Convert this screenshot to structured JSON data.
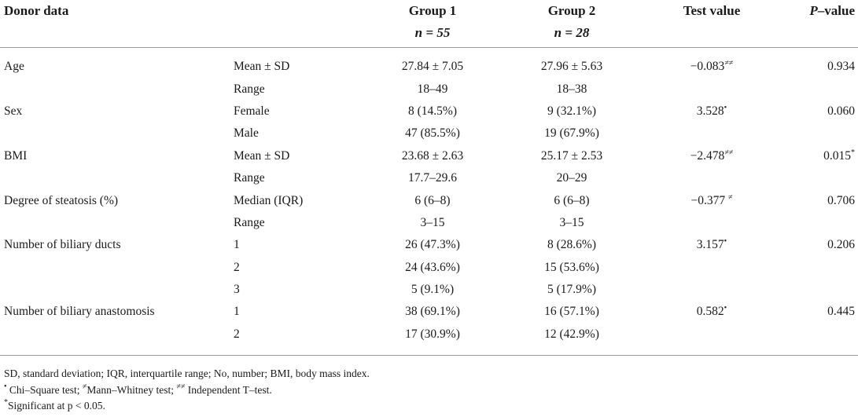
{
  "header": {
    "col1": "Donor data",
    "col3": "Group 1",
    "col3_n": "n = 55",
    "col4": "Group 2",
    "col4_n": "n = 28",
    "col5": "Test value",
    "col6_italic": "P",
    "col6_rest": "–value"
  },
  "rows": [
    {
      "variable": "Age",
      "stat": "Mean ± SD",
      "g1": "27.84 ± 7.05",
      "g2": "27.96 ± 5.63",
      "test": "−0.083",
      "test_mark": "≠≠",
      "p": "0.934",
      "p_mark": ""
    },
    {
      "variable": "",
      "stat": "Range",
      "g1": "18–49",
      "g2": "18–38",
      "test": "",
      "test_mark": "",
      "p": "",
      "p_mark": ""
    },
    {
      "variable": "Sex",
      "stat": "Female",
      "g1": "8 (14.5%)",
      "g2": "9 (32.1%)",
      "test": "3.528",
      "test_mark": "•",
      "p": "0.060",
      "p_mark": ""
    },
    {
      "variable": "",
      "stat": "Male",
      "g1": "47 (85.5%)",
      "g2": "19 (67.9%)",
      "test": "",
      "test_mark": "",
      "p": "",
      "p_mark": ""
    },
    {
      "variable": "BMI",
      "stat": "Mean ± SD",
      "g1": "23.68 ± 2.63",
      "g2": "25.17 ± 2.53",
      "test": "−2.478",
      "test_mark": "≠≠",
      "p": "0.015",
      "p_mark": "*"
    },
    {
      "variable": "",
      "stat": "Range",
      "g1": "17.7–29.6",
      "g2": "20–29",
      "test": "",
      "test_mark": "",
      "p": "",
      "p_mark": ""
    },
    {
      "variable": "Degree of steatosis (%)",
      "stat": "Median (IQR)",
      "g1": "6 (6–8)",
      "g2": "6 (6–8)",
      "test": "−0.377 ",
      "test_mark": "≠",
      "p": "0.706",
      "p_mark": ""
    },
    {
      "variable": "",
      "stat": "Range",
      "g1": "3–15",
      "g2": "3–15",
      "test": "",
      "test_mark": "",
      "p": "",
      "p_mark": ""
    },
    {
      "variable": "Number of biliary ducts",
      "stat": "1",
      "g1": "26 (47.3%)",
      "g2": "8 (28.6%)",
      "test": "3.157",
      "test_mark": "•",
      "p": "0.206",
      "p_mark": ""
    },
    {
      "variable": "",
      "stat": "2",
      "g1": "24 (43.6%)",
      "g2": "15 (53.6%)",
      "test": "",
      "test_mark": "",
      "p": "",
      "p_mark": ""
    },
    {
      "variable": "",
      "stat": "3",
      "g1": "5 (9.1%)",
      "g2": "5 (17.9%)",
      "test": "",
      "test_mark": "",
      "p": "",
      "p_mark": ""
    },
    {
      "variable": "Number of biliary anastomosis",
      "stat": "1",
      "g1": "38 (69.1%)",
      "g2": "16 (57.1%)",
      "test": "0.582",
      "test_mark": "•",
      "p": "0.445",
      "p_mark": ""
    },
    {
      "variable": "",
      "stat": "2",
      "g1": "17 (30.9%)",
      "g2": "12 (42.9%)",
      "test": "",
      "test_mark": "",
      "p": "",
      "p_mark": ""
    }
  ],
  "footnotes": {
    "abbrev": "SD, standard deviation; IQR, interquartile range; No, number; BMI, body mass index.",
    "tests_mark1": "•",
    "tests_text1": " Chi–Square test; ",
    "tests_mark2": "≠",
    "tests_text2": "Mann–Whitney test; ",
    "tests_mark3": "≠≠",
    "tests_text3": " Independent T–test.",
    "sig_mark": "*",
    "sig_text": "Significant at p < 0.05."
  }
}
